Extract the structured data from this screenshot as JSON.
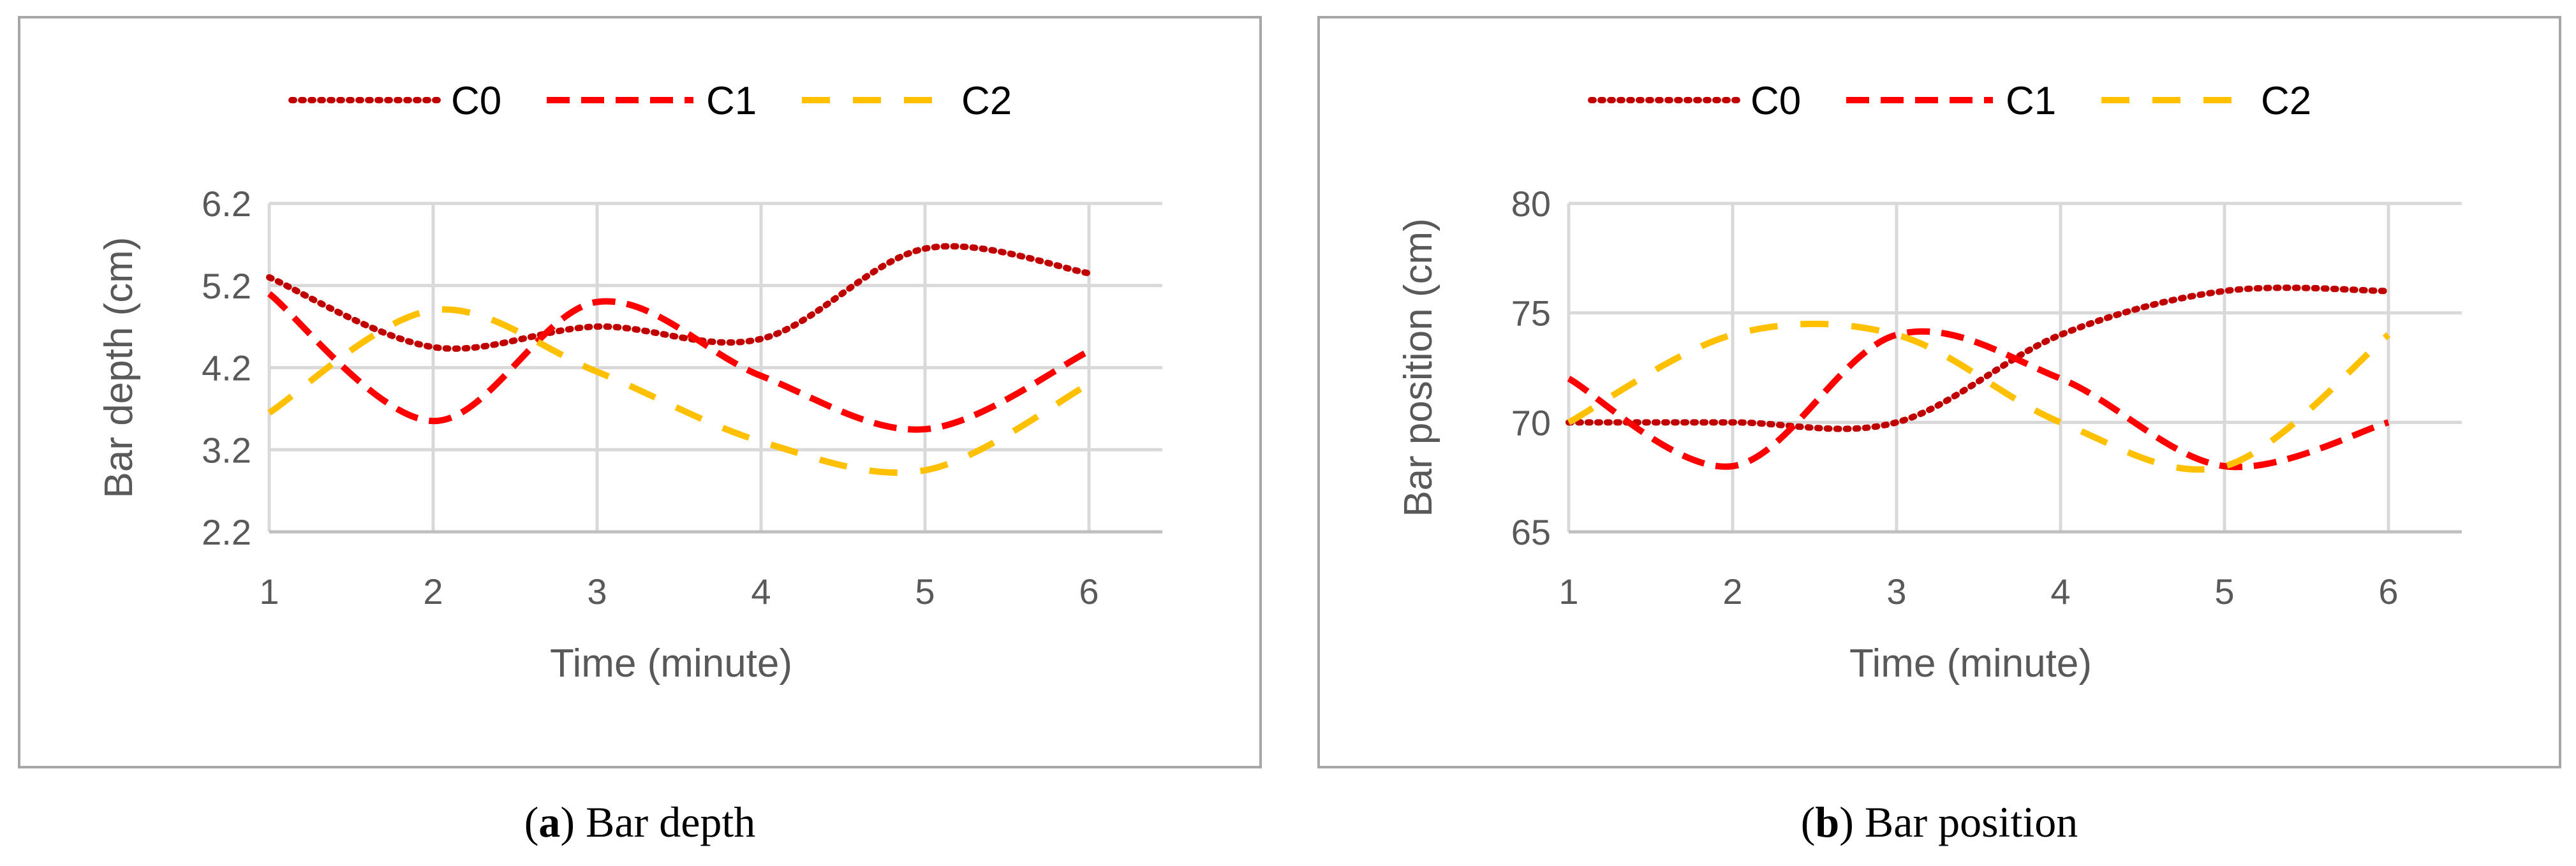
{
  "chart_data": [
    {
      "type": "line",
      "panel_letter": "a",
      "caption": "Bar depth",
      "xlabel": "Time (minute)",
      "ylabel": "Bar depth (cm)",
      "x": [
        1,
        2,
        3,
        4,
        5,
        6
      ],
      "xticks": [
        "1",
        "2",
        "3",
        "4",
        "5",
        "6"
      ],
      "ylim": [
        2.2,
        6.2
      ],
      "yticks": [
        "2.2",
        "3.2",
        "4.2",
        "5.2",
        "6.2"
      ],
      "ytick_values": [
        2.2,
        3.2,
        4.2,
        5.2,
        6.2
      ],
      "series": [
        {
          "name": "C0",
          "color": "#c00000",
          "values": [
            5.3,
            4.45,
            4.7,
            4.55,
            5.65,
            5.35
          ]
        },
        {
          "name": "C1",
          "color": "#ff0000",
          "values": [
            5.1,
            3.55,
            5.0,
            4.1,
            3.45,
            4.4
          ]
        },
        {
          "name": "C2",
          "color": "#ffc000",
          "values": [
            3.65,
            4.9,
            4.15,
            3.3,
            2.95,
            4.0
          ]
        }
      ]
    },
    {
      "type": "line",
      "panel_letter": "b",
      "caption": "Bar position",
      "xlabel": "Time (minute)",
      "ylabel": "Bar position (cm)",
      "x": [
        1,
        2,
        3,
        4,
        5,
        6
      ],
      "xticks": [
        "1",
        "2",
        "3",
        "4",
        "5",
        "6"
      ],
      "ylim": [
        65,
        80
      ],
      "yticks": [
        "65",
        "70",
        "75",
        "80"
      ],
      "ytick_values": [
        65,
        70,
        75,
        80
      ],
      "series": [
        {
          "name": "C0",
          "color": "#c00000",
          "values": [
            70,
            70,
            70,
            74,
            76,
            76
          ]
        },
        {
          "name": "C1",
          "color": "#ff0000",
          "values": [
            72,
            68,
            74,
            72,
            68,
            70
          ]
        },
        {
          "name": "C2",
          "color": "#ffc000",
          "values": [
            70,
            74,
            74,
            70,
            68,
            74
          ]
        }
      ]
    }
  ]
}
